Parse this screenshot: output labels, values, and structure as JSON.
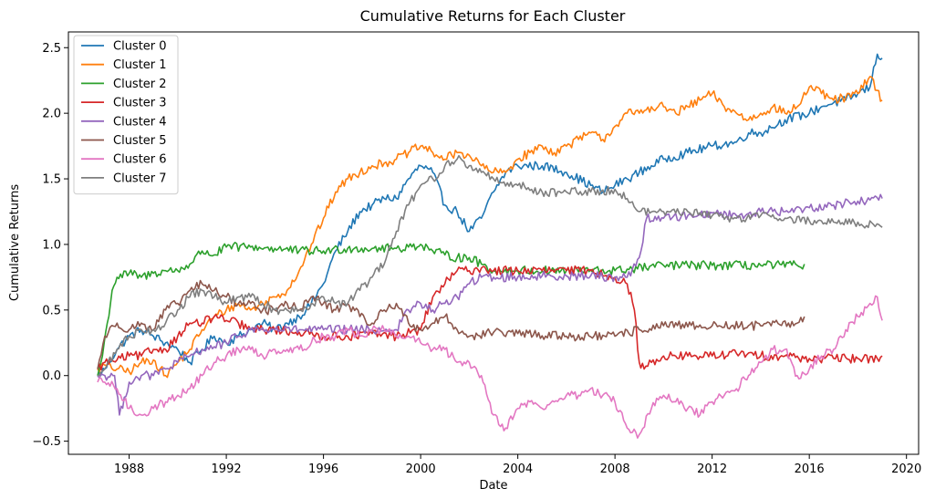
{
  "chart_data": {
    "type": "line",
    "title": "Cumulative Returns for Each Cluster",
    "xlabel": "Date",
    "ylabel": "Cumulative Returns",
    "xlim": [
      1985.5,
      2020.5
    ],
    "ylim": [
      -0.6,
      2.62
    ],
    "x_ticks": [
      1988,
      1992,
      1996,
      2000,
      2004,
      2008,
      2012,
      2016,
      2020
    ],
    "y_ticks": [
      -0.5,
      0.0,
      0.5,
      1.0,
      1.5,
      2.0,
      2.5
    ],
    "y_tick_labels": [
      "−0.5",
      "0.0",
      "0.5",
      "1.0",
      "1.5",
      "2.0",
      "2.5"
    ],
    "grid": false,
    "legend_position": "top-left",
    "series": [
      {
        "name": "Cluster 0",
        "color": "#1f77b4",
        "x": [
          1986.7,
          1987.0,
          1987.5,
          1988.0,
          1988.5,
          1989.0,
          1989.5,
          1990.0,
          1990.5,
          1991.0,
          1991.5,
          1992.0,
          1992.5,
          1993.0,
          1993.5,
          1994.0,
          1994.5,
          1995.0,
          1995.5,
          1996.0,
          1996.5,
          1997.0,
          1997.5,
          1998.0,
          1998.5,
          1999.0,
          1999.5,
          2000.0,
          2000.5,
          2001.0,
          2001.5,
          2002.0,
          2002.5,
          2003.0,
          2003.5,
          2004.0,
          2005.0,
          2006.0,
          2007.0,
          2007.5,
          2008.0,
          2008.5,
          2009.0,
          2009.5,
          2010.0,
          2011.0,
          2012.0,
          2013.0,
          2013.5,
          2014.0,
          2015.0,
          2016.0,
          2016.5,
          2017.0,
          2017.5,
          2018.0,
          2018.5,
          2018.8,
          2019.0
        ],
        "values": [
          0.0,
          0.05,
          0.2,
          0.3,
          0.35,
          0.3,
          0.25,
          0.2,
          0.1,
          0.2,
          0.3,
          0.25,
          0.3,
          0.35,
          0.4,
          0.35,
          0.4,
          0.45,
          0.55,
          0.7,
          0.95,
          1.1,
          1.25,
          1.3,
          1.35,
          1.35,
          1.5,
          1.6,
          1.55,
          1.3,
          1.25,
          1.1,
          1.2,
          1.4,
          1.55,
          1.6,
          1.6,
          1.55,
          1.45,
          1.4,
          1.45,
          1.5,
          1.55,
          1.6,
          1.65,
          1.7,
          1.75,
          1.78,
          1.85,
          1.85,
          1.95,
          2.0,
          2.05,
          2.08,
          2.1,
          2.15,
          2.2,
          2.45,
          2.42
        ]
      },
      {
        "name": "Cluster 1",
        "color": "#ff7f0e",
        "x": [
          1986.7,
          1987.0,
          1987.5,
          1988.0,
          1988.5,
          1989.0,
          1989.5,
          1990.0,
          1990.5,
          1991.0,
          1991.5,
          1992.0,
          1992.5,
          1993.0,
          1993.5,
          1994.0,
          1994.5,
          1995.0,
          1995.5,
          1996.0,
          1996.5,
          1997.0,
          1997.5,
          1998.0,
          1998.5,
          1999.0,
          1999.5,
          2000.0,
          2000.5,
          2001.0,
          2001.5,
          2002.0,
          2002.5,
          2003.0,
          2003.5,
          2004.0,
          2004.5,
          2005.0,
          2005.5,
          2006.0,
          2006.5,
          2007.0,
          2007.5,
          2008.0,
          2008.5,
          2009.0,
          2009.5,
          2010.0,
          2010.5,
          2011.0,
          2011.5,
          2012.0,
          2012.5,
          2013.0,
          2013.5,
          2014.0,
          2014.5,
          2015.0,
          2015.5,
          2016.0,
          2016.5,
          2017.0,
          2017.5,
          2018.0,
          2018.5,
          2019.0
        ],
        "values": [
          0.05,
          0.08,
          0.05,
          0.03,
          0.1,
          0.12,
          0.0,
          0.1,
          0.2,
          0.35,
          0.45,
          0.5,
          0.55,
          0.5,
          0.55,
          0.6,
          0.65,
          0.8,
          1.0,
          1.2,
          1.4,
          1.5,
          1.55,
          1.6,
          1.62,
          1.65,
          1.7,
          1.75,
          1.7,
          1.65,
          1.7,
          1.68,
          1.6,
          1.55,
          1.55,
          1.65,
          1.7,
          1.75,
          1.7,
          1.75,
          1.8,
          1.85,
          1.8,
          1.9,
          2.0,
          2.0,
          2.05,
          2.05,
          2.0,
          2.05,
          2.1,
          2.15,
          2.05,
          2.0,
          1.95,
          2.0,
          2.05,
          2.0,
          2.05,
          2.2,
          2.15,
          2.1,
          2.12,
          2.15,
          2.28,
          2.1
        ]
      },
      {
        "name": "Cluster 2",
        "color": "#2ca02c",
        "x": [
          1986.7,
          1986.9,
          1987.1,
          1987.3,
          1987.5,
          1988.0,
          1988.5,
          1989.0,
          1989.5,
          1990.0,
          1990.5,
          1991.0,
          1991.5,
          1992.0,
          1993.0,
          1994.0,
          1995.0,
          1996.0,
          1997.0,
          1998.0,
          1999.0,
          1999.5,
          2000.0,
          2000.5,
          2001.0,
          2001.5,
          2002.0,
          2002.5,
          2003.0,
          2004.0,
          2006.0,
          2008.0,
          2010.0,
          2012.0,
          2014.0,
          2015.5,
          2015.8
        ],
        "values": [
          0.0,
          0.15,
          0.4,
          0.65,
          0.75,
          0.78,
          0.75,
          0.78,
          0.8,
          0.8,
          0.85,
          0.95,
          0.92,
          0.98,
          0.98,
          0.97,
          0.95,
          0.95,
          0.97,
          0.97,
          0.97,
          0.98,
          1.0,
          0.95,
          0.92,
          0.9,
          0.9,
          0.85,
          0.8,
          0.8,
          0.8,
          0.8,
          0.84,
          0.84,
          0.84,
          0.84,
          0.85
        ]
      },
      {
        "name": "Cluster 3",
        "color": "#d62728",
        "x": [
          1986.7,
          1987.0,
          1987.5,
          1988.0,
          1988.5,
          1989.0,
          1989.5,
          1990.0,
          1990.5,
          1991.0,
          1991.5,
          1992.0,
          1992.5,
          1993.0,
          1994.0,
          1995.0,
          1996.0,
          1997.0,
          1998.0,
          1999.0,
          2000.0,
          2000.5,
          2001.0,
          2001.5,
          2002.0,
          2002.5,
          2003.0,
          2004.0,
          2005.0,
          2006.0,
          2007.0,
          2008.0,
          2008.5,
          2008.8,
          2009.0,
          2009.2,
          2009.5,
          2010.0,
          2011.0,
          2012.0,
          2013.0,
          2014.0,
          2015.0,
          2016.0,
          2017.0,
          2018.0,
          2018.8,
          2019.0
        ],
        "values": [
          0.05,
          0.1,
          0.12,
          0.15,
          0.15,
          0.2,
          0.2,
          0.3,
          0.4,
          0.4,
          0.45,
          0.42,
          0.4,
          0.35,
          0.35,
          0.33,
          0.3,
          0.3,
          0.32,
          0.3,
          0.35,
          0.6,
          0.7,
          0.8,
          0.8,
          0.82,
          0.8,
          0.8,
          0.8,
          0.8,
          0.8,
          0.75,
          0.7,
          0.5,
          0.1,
          0.05,
          0.1,
          0.15,
          0.15,
          0.15,
          0.17,
          0.15,
          0.15,
          0.13,
          0.13,
          0.13,
          0.13,
          0.15
        ]
      },
      {
        "name": "Cluster 4",
        "color": "#9467bd",
        "x": [
          1986.7,
          1987.0,
          1987.4,
          1987.6,
          1988.0,
          1988.5,
          1989.0,
          1989.5,
          1990.0,
          1990.5,
          1991.0,
          1991.5,
          1992.0,
          1992.5,
          1993.0,
          1994.0,
          1995.0,
          1996.0,
          1997.0,
          1998.0,
          1999.0,
          1999.5,
          2000.0,
          2000.5,
          2001.0,
          2001.5,
          2002.0,
          2002.5,
          2003.0,
          2004.0,
          2005.0,
          2006.0,
          2007.0,
          2008.0,
          2008.5,
          2009.0,
          2009.3,
          2010.0,
          2011.0,
          2012.0,
          2013.0,
          2014.0,
          2015.0,
          2016.0,
          2017.0,
          2018.0,
          2019.0
        ],
        "values": [
          0.0,
          0.0,
          0.0,
          -0.3,
          -0.05,
          0.0,
          0.0,
          0.05,
          0.1,
          0.15,
          0.2,
          0.22,
          0.25,
          0.3,
          0.35,
          0.35,
          0.35,
          0.35,
          0.35,
          0.35,
          0.35,
          0.5,
          0.55,
          0.5,
          0.55,
          0.6,
          0.7,
          0.75,
          0.75,
          0.75,
          0.76,
          0.76,
          0.76,
          0.75,
          0.75,
          0.9,
          1.2,
          1.2,
          1.22,
          1.24,
          1.22,
          1.25,
          1.25,
          1.28,
          1.3,
          1.33,
          1.35
        ]
      },
      {
        "name": "Cluster 5",
        "color": "#8c564b",
        "x": [
          1986.7,
          1987.0,
          1987.5,
          1988.0,
          1988.5,
          1989.0,
          1989.5,
          1990.0,
          1990.5,
          1991.0,
          1991.5,
          1992.0,
          1992.5,
          1993.0,
          1993.5,
          1994.0,
          1994.5,
          1995.0,
          1995.5,
          1996.0,
          1996.5,
          1997.0,
          1997.5,
          1998.0,
          1998.5,
          1999.0,
          1999.5,
          2000.0,
          2000.5,
          2001.0,
          2001.5,
          2002.0,
          2003.0,
          2004.0,
          2006.0,
          2008.0,
          2009.0,
          2010.0,
          2012.0,
          2014.0,
          2015.5,
          2015.8
        ],
        "values": [
          0.05,
          0.3,
          0.4,
          0.35,
          0.4,
          0.35,
          0.5,
          0.55,
          0.65,
          0.7,
          0.65,
          0.6,
          0.55,
          0.55,
          0.5,
          0.5,
          0.55,
          0.5,
          0.6,
          0.55,
          0.5,
          0.55,
          0.45,
          0.4,
          0.5,
          0.55,
          0.4,
          0.35,
          0.4,
          0.45,
          0.35,
          0.3,
          0.33,
          0.32,
          0.3,
          0.3,
          0.35,
          0.38,
          0.38,
          0.38,
          0.4,
          0.45
        ]
      },
      {
        "name": "Cluster 6",
        "color": "#e377c2",
        "x": [
          1986.7,
          1987.0,
          1987.5,
          1988.0,
          1988.5,
          1989.0,
          1989.5,
          1990.0,
          1990.5,
          1991.0,
          1991.5,
          1992.0,
          1992.5,
          1993.0,
          1993.5,
          1994.0,
          1994.5,
          1995.0,
          1995.5,
          1996.0,
          1996.5,
          1997.0,
          1997.5,
          1998.0,
          1998.5,
          1999.0,
          1999.5,
          2000.0,
          2000.5,
          2001.0,
          2001.5,
          2002.0,
          2002.5,
          2003.0,
          2003.5,
          2004.0,
          2004.5,
          2005.0,
          2005.5,
          2006.0,
          2006.5,
          2007.0,
          2007.5,
          2008.0,
          2008.5,
          2009.0,
          2009.5,
          2010.0,
          2010.5,
          2011.0,
          2011.5,
          2012.0,
          2012.5,
          2013.0,
          2013.5,
          2014.0,
          2014.5,
          2015.0,
          2015.5,
          2016.0,
          2016.5,
          2017.0,
          2017.5,
          2018.0,
          2018.5,
          2018.8,
          2019.0
        ],
        "values": [
          -0.05,
          -0.05,
          -0.1,
          -0.25,
          -0.3,
          -0.25,
          -0.2,
          -0.15,
          -0.1,
          0.0,
          0.1,
          0.15,
          0.2,
          0.2,
          0.15,
          0.2,
          0.2,
          0.2,
          0.25,
          0.3,
          0.3,
          0.35,
          0.3,
          0.35,
          0.35,
          0.3,
          0.3,
          0.25,
          0.2,
          0.2,
          0.1,
          0.1,
          0.0,
          -0.3,
          -0.4,
          -0.25,
          -0.2,
          -0.25,
          -0.2,
          -0.15,
          -0.15,
          -0.1,
          -0.15,
          -0.2,
          -0.4,
          -0.45,
          -0.25,
          -0.15,
          -0.2,
          -0.25,
          -0.3,
          -0.2,
          -0.15,
          -0.1,
          0.0,
          0.1,
          0.2,
          0.2,
          0.0,
          0.05,
          0.15,
          0.2,
          0.35,
          0.45,
          0.55,
          0.6,
          0.42
        ]
      },
      {
        "name": "Cluster 7",
        "color": "#7f7f7f",
        "x": [
          1986.7,
          1987.0,
          1987.5,
          1988.0,
          1988.5,
          1989.0,
          1989.5,
          1990.0,
          1990.5,
          1991.0,
          1991.5,
          1992.0,
          1992.5,
          1993.0,
          1993.5,
          1994.0,
          1994.5,
          1995.0,
          1995.5,
          1996.0,
          1996.5,
          1997.0,
          1997.5,
          1998.0,
          1998.5,
          1999.0,
          1999.5,
          2000.0,
          2000.5,
          2001.0,
          2001.5,
          2002.0,
          2002.5,
          2003.0,
          2004.0,
          2005.0,
          2006.0,
          2007.0,
          2008.0,
          2008.5,
          2009.0,
          2010.0,
          2011.0,
          2012.0,
          2013.0,
          2014.0,
          2015.0,
          2016.0,
          2017.0,
          2018.0,
          2019.0
        ],
        "values": [
          0.0,
          0.05,
          0.2,
          0.3,
          0.35,
          0.35,
          0.4,
          0.5,
          0.6,
          0.65,
          0.6,
          0.55,
          0.6,
          0.6,
          0.55,
          0.5,
          0.5,
          0.5,
          0.55,
          0.6,
          0.55,
          0.55,
          0.65,
          0.75,
          0.85,
          1.1,
          1.3,
          1.45,
          1.5,
          1.6,
          1.65,
          1.6,
          1.55,
          1.5,
          1.45,
          1.4,
          1.4,
          1.4,
          1.42,
          1.35,
          1.25,
          1.25,
          1.25,
          1.22,
          1.2,
          1.22,
          1.2,
          1.18,
          1.17,
          1.17,
          1.13
        ]
      }
    ]
  }
}
